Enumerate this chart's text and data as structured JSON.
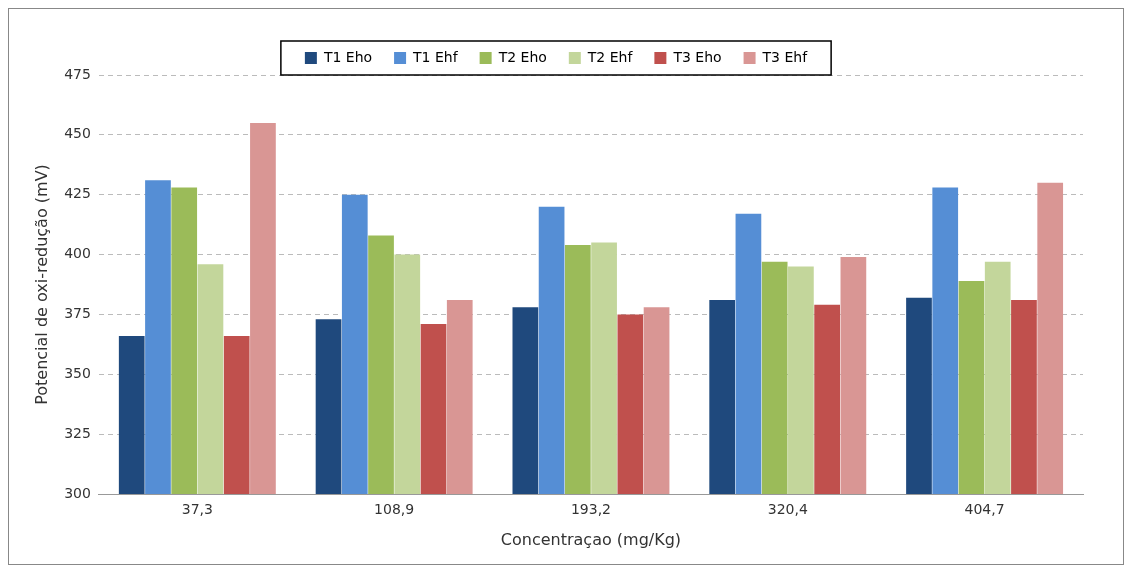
{
  "chart_data": {
    "type": "bar",
    "xlabel": "Concentraçao (mg/Kg)",
    "ylabel": "Potencial de oxi-redução (mV)",
    "categories": [
      "37,3",
      "108,9",
      "193,2",
      "320,4",
      "404,7"
    ],
    "series": [
      {
        "name": "T1 Eho",
        "color": "#1f497d",
        "values": [
          366,
          373,
          378,
          381,
          382
        ]
      },
      {
        "name": "T1 Ehf",
        "color": "#558ed5",
        "values": [
          431,
          425,
          420,
          417,
          428
        ]
      },
      {
        "name": "T2 Eho",
        "color": "#9bbb59",
        "values": [
          428,
          408,
          404,
          397,
          389
        ]
      },
      {
        "name": "T2 Ehf",
        "color": "#c3d69b",
        "values": [
          396,
          400,
          405,
          395,
          397
        ]
      },
      {
        "name": "T3 Eho",
        "color": "#c0504d",
        "values": [
          366,
          371,
          375,
          379,
          381
        ]
      },
      {
        "name": "T3 Ehf",
        "color": "#d99694",
        "values": [
          455,
          381,
          378,
          399,
          430
        ]
      }
    ],
    "ylim": [
      300,
      475
    ],
    "yticks": [
      300,
      325,
      350,
      375,
      400,
      425,
      450,
      475
    ],
    "grid": "y",
    "legend": "top"
  }
}
